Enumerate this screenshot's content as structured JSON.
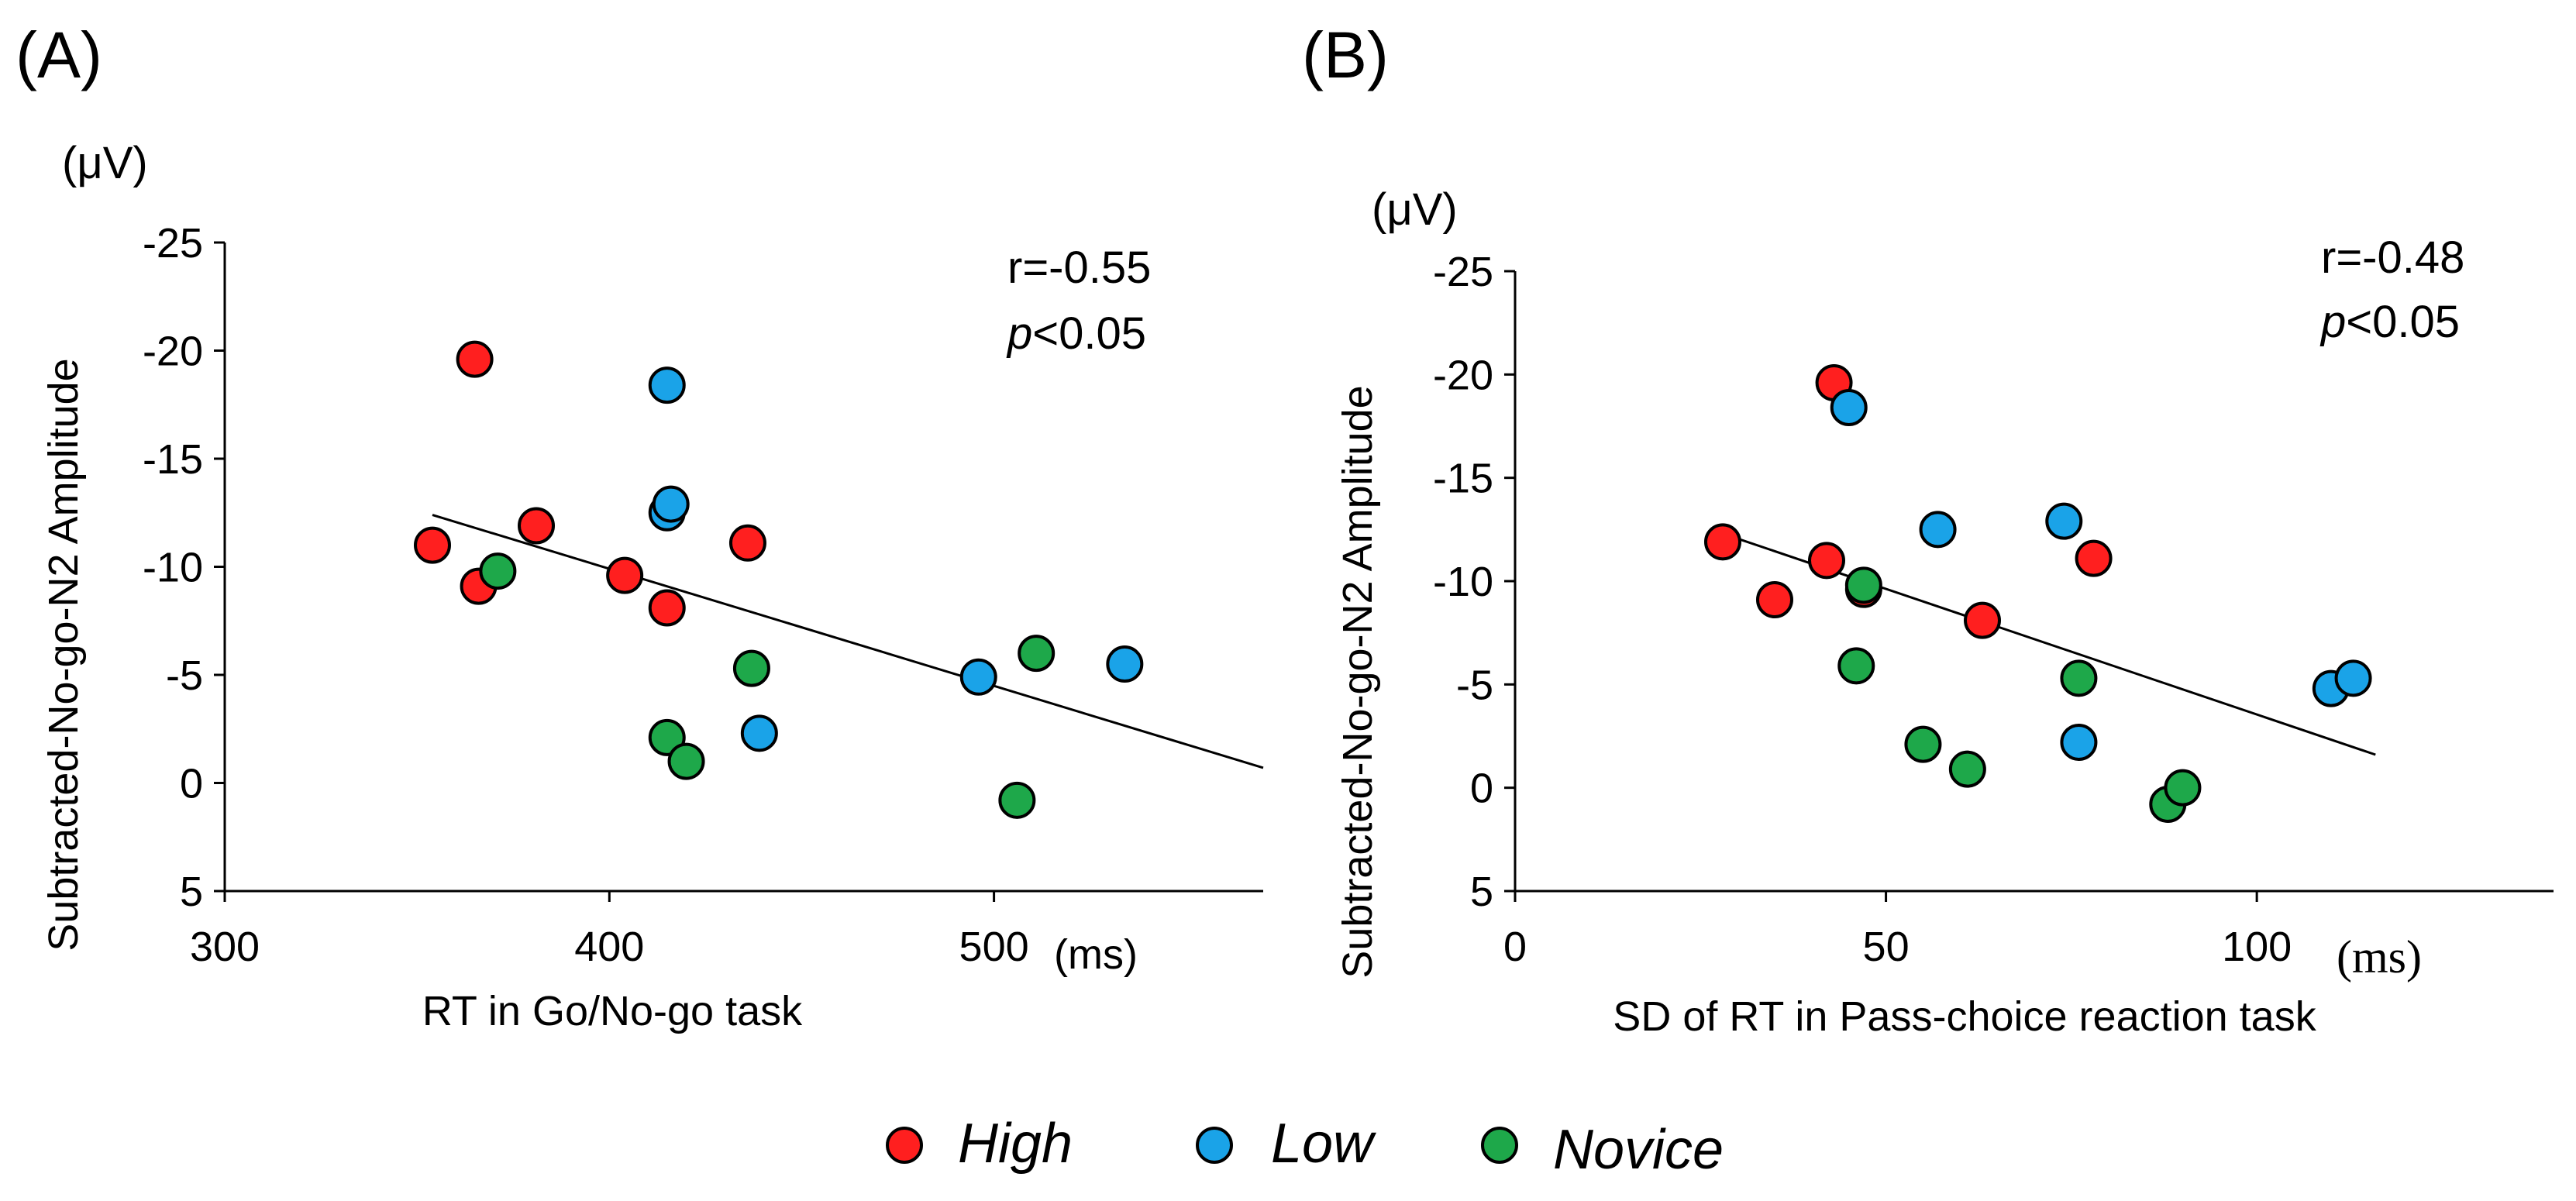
{
  "legend": {
    "items": [
      {
        "label": "High",
        "color": "#ff1f1f"
      },
      {
        "label": "Low",
        "color": "#1aa3e8"
      },
      {
        "label": "Novice",
        "color": "#1ea84a"
      }
    ]
  },
  "chart_data": [
    {
      "type": "scatter",
      "panel_label": "(A)",
      "unit_label": "(μV)",
      "xlabel": "RT in Go/No-go task",
      "x_unit": "(ms)",
      "ylabel": "Subtracted-No-go-N2 Amplitude",
      "xlim": [
        300,
        570
      ],
      "ylim": [
        -25,
        5
      ],
      "y_inverted": true,
      "x_ticks": [
        {
          "v": 300,
          "label": "300"
        },
        {
          "v": 400,
          "label": "400"
        },
        {
          "v": 500,
          "label": "500"
        }
      ],
      "y_ticks": [
        {
          "v": -25,
          "label": "-25"
        },
        {
          "v": -20,
          "label": "-20"
        },
        {
          "v": -15,
          "label": "-15"
        },
        {
          "v": -10,
          "label": "-10"
        },
        {
          "v": -5,
          "label": "-5"
        },
        {
          "v": 0,
          "label": "0"
        },
        {
          "v": 5,
          "label": "5"
        }
      ],
      "stats": {
        "r": "r=-0.55",
        "p_symbol": "p",
        "p_rest": "<0.05"
      },
      "regression": {
        "x": [
          354,
          570
        ],
        "y": [
          -12.4,
          -0.7
        ]
      },
      "series": [
        {
          "name": "High",
          "color": "#ff1f1f",
          "points": [
            [
              365,
              -19.6
            ],
            [
              354,
              -11.0
            ],
            [
              366,
              -9.1
            ],
            [
              381,
              -11.9
            ],
            [
              404,
              -9.6
            ],
            [
              415,
              -8.1
            ],
            [
              436,
              -11.1
            ]
          ]
        },
        {
          "name": "Low",
          "color": "#1aa3e8",
          "points": [
            [
              415,
              -18.4
            ],
            [
              415,
              -12.5
            ],
            [
              416,
              -12.9
            ],
            [
              439,
              -2.3
            ],
            [
              496,
              -4.9
            ],
            [
              534,
              -5.5
            ]
          ]
        },
        {
          "name": "Novice",
          "color": "#1ea84a",
          "points": [
            [
              371,
              -9.8
            ],
            [
              415,
              -2.1
            ],
            [
              420,
              -1.0
            ],
            [
              437,
              -5.3
            ],
            [
              506,
              0.8
            ],
            [
              511,
              -6.0
            ]
          ]
        }
      ]
    },
    {
      "type": "scatter",
      "panel_label": "(B)",
      "unit_label": "(μV)",
      "xlabel": "SD of RT in Pass-choice  reaction task",
      "x_unit": "(ms)",
      "ylabel": "Subtracted-No-go-N2 Amplitude",
      "xlim": [
        0,
        140
      ],
      "ylim": [
        -25,
        5
      ],
      "y_inverted": true,
      "x_ticks": [
        {
          "v": 0,
          "label": "0"
        },
        {
          "v": 50,
          "label": "50"
        },
        {
          "v": 100,
          "label": "100"
        }
      ],
      "y_ticks": [
        {
          "v": -25,
          "label": "-25"
        },
        {
          "v": -20,
          "label": "-20"
        },
        {
          "v": -15,
          "label": "-15"
        },
        {
          "v": -10,
          "label": "-10"
        },
        {
          "v": -5,
          "label": "-5"
        },
        {
          "v": 0,
          "label": "0"
        },
        {
          "v": 5,
          "label": "5"
        }
      ],
      "stats": {
        "r": "r=-0.48",
        "p_symbol": "p",
        "p_rest": "<0.05"
      },
      "regression": {
        "x": [
          28,
          116
        ],
        "y": [
          -12.3,
          -1.6
        ]
      },
      "series": [
        {
          "name": "High",
          "color": "#ff1f1f",
          "points": [
            [
              43,
              -19.6
            ],
            [
              28,
              -11.9
            ],
            [
              35,
              -9.1
            ],
            [
              42,
              -11.0
            ],
            [
              47,
              -9.6
            ],
            [
              63,
              -8.1
            ],
            [
              78,
              -11.1
            ]
          ]
        },
        {
          "name": "Low",
          "color": "#1aa3e8",
          "points": [
            [
              45,
              -18.4
            ],
            [
              57,
              -12.5
            ],
            [
              74,
              -12.9
            ],
            [
              76,
              -2.2
            ],
            [
              110,
              -4.8
            ],
            [
              113,
              -5.3
            ]
          ]
        },
        {
          "name": "Novice",
          "color": "#1ea84a",
          "points": [
            [
              47,
              -9.8
            ],
            [
              46,
              -5.9
            ],
            [
              55,
              -2.1
            ],
            [
              61,
              -0.9
            ],
            [
              76,
              -5.3
            ],
            [
              88,
              0.8
            ],
            [
              90,
              0.0
            ]
          ]
        }
      ]
    }
  ]
}
